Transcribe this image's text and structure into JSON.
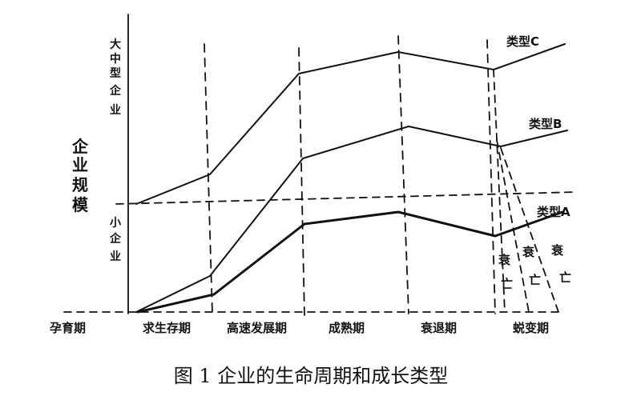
{
  "caption": "图 1 企业的生命周期和成长类型",
  "y_axis": {
    "label": "企业规模",
    "upper": "大中型企业",
    "lower": "小企业"
  },
  "stages": [
    "孕育期",
    "求生存期",
    "高速发展期",
    "成熟期",
    "衰退期",
    "蜕变期"
  ],
  "types": [
    {
      "label": "类型C"
    },
    {
      "label": "类型B"
    },
    {
      "label": "类型A"
    }
  ],
  "decline_labels": [
    "衰亡",
    "衰亡",
    "衰亡"
  ]
}
